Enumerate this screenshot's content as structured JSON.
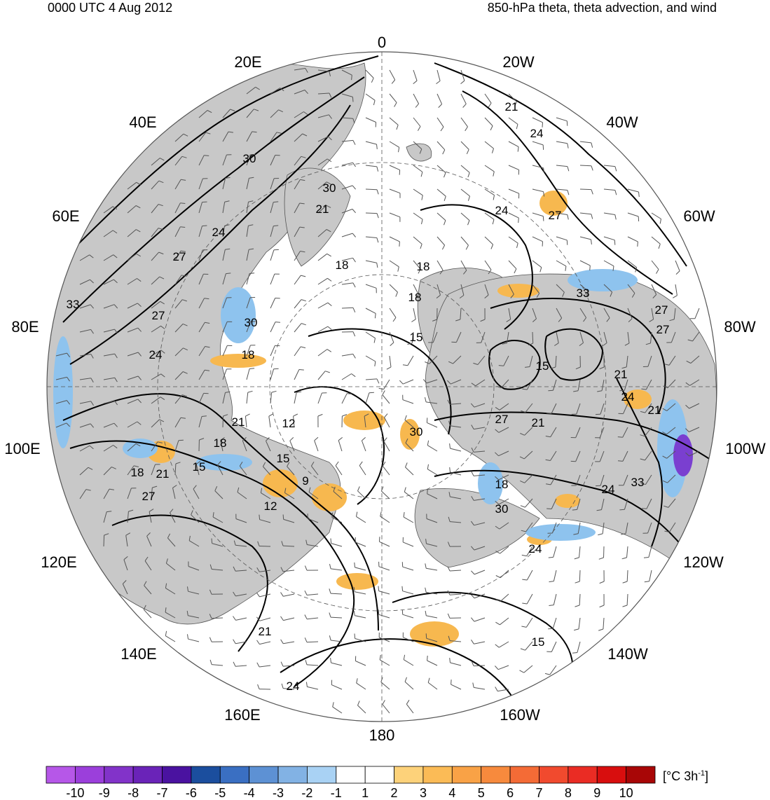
{
  "header": {
    "time_label": "0000 UTC 4 Aug 2012",
    "title": "850-hPa theta, theta advection, and wind"
  },
  "map": {
    "projection": "north polar stereographic",
    "longitude_labels": [
      "0",
      "20W",
      "40W",
      "60W",
      "80W",
      "100W",
      "120W",
      "140W",
      "160W",
      "180",
      "160E",
      "140E",
      "120E",
      "100E",
      "80E",
      "60E",
      "40E",
      "20E"
    ],
    "theta_contour_labels": [
      "21",
      "24",
      "27",
      "30",
      "30",
      "21",
      "24",
      "27",
      "33",
      "27",
      "24",
      "21",
      "12",
      "15",
      "18",
      "9",
      "12",
      "15",
      "18",
      "21",
      "27",
      "33",
      "30",
      "18",
      "15",
      "24",
      "27",
      "21",
      "24",
      "18",
      "15",
      "21",
      "24",
      "30",
      "18",
      "21",
      "33",
      "27",
      "30",
      "27",
      "24",
      "18",
      "21",
      "24",
      "15",
      "18"
    ],
    "colors": {
      "land": "#c8c8c8",
      "ocean": "#ffffff",
      "contour": "#000000",
      "coastline": "#555555",
      "warm_advection": "#f7b84f",
      "cold_advection": "#8ec3ee"
    }
  },
  "colorbar": {
    "tick_labels": [
      "-10",
      "-9",
      "-8",
      "-7",
      "-6",
      "-5",
      "-4",
      "-3",
      "-2",
      "-1",
      "1",
      "2",
      "3",
      "4",
      "5",
      "6",
      "7",
      "8",
      "9",
      "10"
    ],
    "colors": [
      "#b657e8",
      "#9b3fdb",
      "#8233c9",
      "#6a23b8",
      "#4a12a0",
      "#1b4e9e",
      "#3a6fc2",
      "#5d91d4",
      "#82b2e4",
      "#a9d2f4",
      "#ffffff",
      "#ffffff",
      "#fdd27a",
      "#fbbb56",
      "#f9a246",
      "#f78a3d",
      "#f46b36",
      "#f14a2e",
      "#ea2c24",
      "#d80e0e",
      "#a80606"
    ],
    "unit_main": "[°C 3h",
    "unit_exp": "-1",
    "unit_close": "]"
  }
}
